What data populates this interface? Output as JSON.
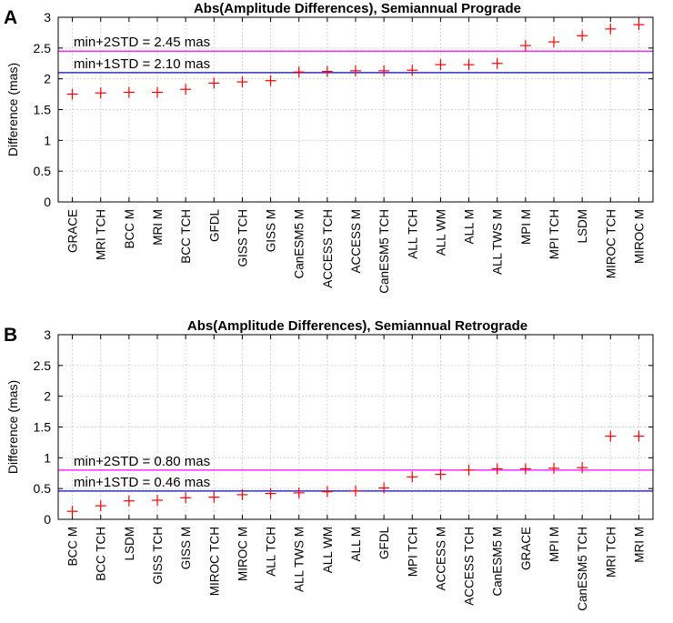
{
  "chart_data": [
    {
      "type": "scatter",
      "panel": "A",
      "title": "Abs(Amplitude Differences), Semiannual Prograde",
      "xlabel": "",
      "ylabel": "Difference (mas)",
      "ylim": [
        0,
        3
      ],
      "yticks": [
        0,
        0.5,
        1,
        1.5,
        2,
        2.5,
        3
      ],
      "ytick_labels": [
        "0",
        "0.5",
        "1",
        "1.5",
        "2",
        "2.5",
        "3"
      ],
      "grid": true,
      "marker": "+",
      "marker_color": "#ff0000",
      "categories": [
        "GRACE",
        "MRI TCH",
        "BCC M",
        "MRI M",
        "BCC TCH",
        "GFDL",
        "GISS TCH",
        "GISS M",
        "CanESM5 M",
        "ACCESS TCH",
        "ACCESS M",
        "CanESM5 TCH",
        "ALL TCH",
        "ALL WM",
        "ALL M",
        "ALL TWS M",
        "MPI M",
        "MPI TCH",
        "LSDM",
        "MIROC TCH",
        "MIROC M"
      ],
      "values": [
        1.75,
        1.77,
        1.78,
        1.78,
        1.83,
        1.93,
        1.95,
        1.97,
        2.11,
        2.12,
        2.13,
        2.13,
        2.14,
        2.23,
        2.23,
        2.25,
        2.54,
        2.6,
        2.7,
        2.81,
        2.88
      ],
      "reference_lines": [
        {
          "label": "min+2STD = 2.45 mas",
          "value": 2.45,
          "color": "#ff00ff"
        },
        {
          "label": "min+1STD = 2.10 mas",
          "value": 2.1,
          "color": "#0000ff"
        }
      ]
    },
    {
      "type": "scatter",
      "panel": "B",
      "title": "Abs(Amplitude Differences), Semiannual Retrograde",
      "xlabel": "",
      "ylabel": "Difference (mas)",
      "ylim": [
        0,
        3
      ],
      "yticks": [
        0,
        0.5,
        1,
        1.5,
        2,
        2.5,
        3
      ],
      "ytick_labels": [
        "0",
        "0.5",
        "1",
        "1.5",
        "2",
        "2.5",
        "3"
      ],
      "grid": true,
      "marker": "+",
      "marker_color": "#ff0000",
      "categories": [
        "BCC M",
        "BCC TCH",
        "LSDM",
        "GISS TCH",
        "GISS M",
        "MIROC TCH",
        "MIROC M",
        "ALL TCH",
        "ALL TWS M",
        "ALL WM",
        "ALL M",
        "GFDL",
        "MPI TCH",
        "ACCESS M",
        "ACCESS TCH",
        "CanESM5 M",
        "GRACE",
        "MPI M",
        "CanESM5 TCH",
        "MRI TCH",
        "MRI M"
      ],
      "values": [
        0.13,
        0.22,
        0.3,
        0.31,
        0.35,
        0.36,
        0.4,
        0.42,
        0.43,
        0.45,
        0.46,
        0.51,
        0.69,
        0.73,
        0.8,
        0.82,
        0.82,
        0.83,
        0.84,
        1.35,
        1.35
      ],
      "reference_lines": [
        {
          "label": "min+2STD = 0.80 mas",
          "value": 0.8,
          "color": "#ff00ff"
        },
        {
          "label": "min+1STD = 0.46 mas",
          "value": 0.46,
          "color": "#0000ff"
        }
      ]
    }
  ]
}
